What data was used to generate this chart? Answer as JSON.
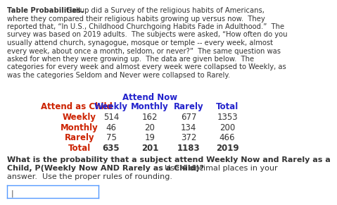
{
  "para_lines": [
    [
      "bold",
      "Table Probabilities."
    ],
    [
      "normal",
      " Gallup did a Survey of the religious habits of Americans,"
    ],
    [
      "normal",
      "where they compared their religious habits growing up versus now.  They"
    ],
    [
      "normal",
      "reported that, “In U.S., Childhood Churchgoing Habits Fade in Adulthood.”  The"
    ],
    [
      "normal",
      "survey was based on 2019 adults.  The subjects were asked, “How often do you"
    ],
    [
      "normal",
      "usually attend church, synagogue, mosque or temple -- every week, almost"
    ],
    [
      "normal",
      "every week, about once a month, seldom, or never?”  The same question was"
    ],
    [
      "normal",
      "asked for when they were growing up.  The data are given below.  The"
    ],
    [
      "normal",
      "categories for every week and almost every week were collapsed to Weekly, as"
    ],
    [
      "normal",
      "was the categories Seldom and Never were collapsed to Rarely."
    ]
  ],
  "attend_now_label": "Attend Now",
  "col_headers": [
    "Attend as Child",
    "Weekly",
    "Monthly",
    "Rarely",
    "Total"
  ],
  "row_labels": [
    "Weekly",
    "Monthly",
    "Rarely",
    "Total"
  ],
  "table_data": [
    [
      514,
      162,
      677,
      1353
    ],
    [
      46,
      20,
      134,
      200
    ],
    [
      75,
      19,
      372,
      466
    ],
    [
      635,
      201,
      1183,
      2019
    ]
  ],
  "row_label_color": "#cc2200",
  "col_header_color": "#2222cc",
  "attend_now_color": "#2222cc",
  "attend_as_child_color": "#cc2200",
  "data_color": "#333333",
  "total_bold": true,
  "question_lines": [
    [
      "bold",
      "What is the probability that a subject attend Weekly Now and Rarely as a"
    ],
    [
      "bold",
      "Child, P(Weekly Now AND Rarely as a Child)?",
      "normal",
      "  Use 4 decimal places in your"
    ],
    [
      "normal",
      "answer.  Use the proper rules of rounding."
    ]
  ],
  "bg_color": "#ffffff",
  "text_color": "#333333",
  "body_fs": 7.2,
  "table_fs": 8.5,
  "q_fs": 8.0
}
